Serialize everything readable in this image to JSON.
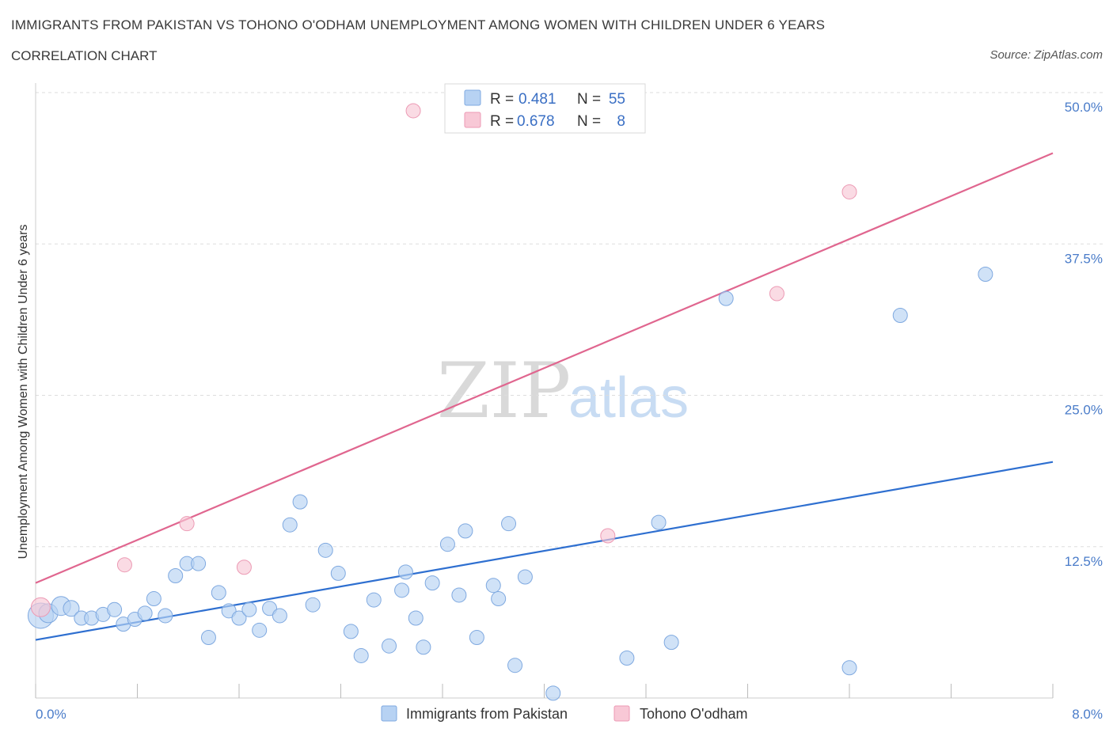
{
  "header": {
    "title": "IMMIGRANTS FROM PAKISTAN VS TOHONO O'ODHAM UNEMPLOYMENT AMONG WOMEN WITH CHILDREN UNDER 6 YEARS",
    "subtitle": "CORRELATION CHART",
    "source": "Source: ZipAtlas.com"
  },
  "watermark": {
    "zip": "ZIP",
    "atlas": "atlas"
  },
  "legend": {
    "rows": [
      {
        "r_label": "R =",
        "r_value": "0.481",
        "n_label": "N =",
        "n_value": "55"
      },
      {
        "r_label": "R =",
        "r_value": "0.678",
        "n_label": "N =",
        "n_value": "8"
      }
    ]
  },
  "colors": {
    "blue_fill": "#b7d2f3",
    "blue_stroke": "#7fa9e0",
    "blue_line": "#2e6fd0",
    "pink_fill": "#f8c8d6",
    "pink_stroke": "#ec9ab4",
    "pink_line": "#e0668f",
    "grid": "#dddddd",
    "tick_text": "#4a7cc9"
  },
  "chart_data": {
    "type": "scatter",
    "title": "IMMIGRANTS FROM PAKISTAN VS TOHONO O'ODHAM UNEMPLOYMENT AMONG WOMEN WITH CHILDREN UNDER 6 YEARS",
    "xlabel": "",
    "ylabel": "Unemployment Among Women with Children Under 6 years",
    "xlim": [
      0,
      8
    ],
    "ylim": [
      0,
      50
    ],
    "x_tick_labels": [
      "0.0%",
      "8.0%"
    ],
    "y_ticks": [
      12.5,
      25.0,
      37.5,
      50.0
    ],
    "y_tick_labels": [
      "12.5%",
      "25.0%",
      "37.5%",
      "50.0%"
    ],
    "grid": true,
    "legend_position": "top-center",
    "series": [
      {
        "name": "Immigrants from Pakistan",
        "color": "#b7d2f3",
        "trend": {
          "x0": 0,
          "y0": 4.8,
          "x1": 8,
          "y1": 19.5
        },
        "points": [
          [
            0.04,
            6.8,
            16
          ],
          [
            0.1,
            7.0,
            12
          ],
          [
            0.2,
            7.6,
            12
          ],
          [
            0.28,
            7.4,
            10
          ],
          [
            0.36,
            6.6,
            9
          ],
          [
            0.44,
            6.6,
            9
          ],
          [
            0.53,
            6.9,
            9
          ],
          [
            0.62,
            7.3,
            9
          ],
          [
            0.69,
            6.1,
            9
          ],
          [
            0.78,
            6.5,
            9
          ],
          [
            0.86,
            7.0,
            9
          ],
          [
            0.93,
            8.2,
            9
          ],
          [
            1.02,
            6.8,
            9
          ],
          [
            1.1,
            10.1,
            9
          ],
          [
            1.19,
            11.1,
            9
          ],
          [
            1.28,
            11.1,
            9
          ],
          [
            1.36,
            5.0,
            9
          ],
          [
            1.44,
            8.7,
            9
          ],
          [
            1.52,
            7.2,
            9
          ],
          [
            1.6,
            6.6,
            9
          ],
          [
            1.68,
            7.3,
            9
          ],
          [
            1.76,
            5.6,
            9
          ],
          [
            1.84,
            7.4,
            9
          ],
          [
            1.92,
            6.8,
            9
          ],
          [
            2.0,
            14.3,
            9
          ],
          [
            2.08,
            16.2,
            9
          ],
          [
            2.18,
            7.7,
            9
          ],
          [
            2.28,
            12.2,
            9
          ],
          [
            2.38,
            10.3,
            9
          ],
          [
            2.48,
            5.5,
            9
          ],
          [
            2.56,
            3.5,
            9
          ],
          [
            2.66,
            8.1,
            9
          ],
          [
            2.78,
            4.3,
            9
          ],
          [
            2.88,
            8.9,
            9
          ],
          [
            2.91,
            10.4,
            9
          ],
          [
            2.99,
            6.6,
            9
          ],
          [
            3.05,
            4.2,
            9
          ],
          [
            3.12,
            9.5,
            9
          ],
          [
            3.24,
            12.7,
            9
          ],
          [
            3.33,
            8.5,
            9
          ],
          [
            3.38,
            13.8,
            9
          ],
          [
            3.47,
            5.0,
            9
          ],
          [
            3.6,
            9.3,
            9
          ],
          [
            3.64,
            8.2,
            9
          ],
          [
            3.72,
            14.4,
            9
          ],
          [
            3.77,
            2.7,
            9
          ],
          [
            3.85,
            10.0,
            9
          ],
          [
            4.07,
            0.4,
            9
          ],
          [
            4.65,
            3.3,
            9
          ],
          [
            4.9,
            14.5,
            9
          ],
          [
            5.0,
            4.6,
            9
          ],
          [
            5.43,
            33.0,
            9
          ],
          [
            6.4,
            2.5,
            9
          ],
          [
            6.8,
            31.6,
            9
          ],
          [
            7.47,
            35.0,
            9
          ]
        ]
      },
      {
        "name": "Tohono O'odham",
        "color": "#f8c8d6",
        "trend": {
          "x0": 0,
          "y0": 9.5,
          "x1": 8,
          "y1": 45.0
        },
        "points": [
          [
            0.04,
            7.5,
            12
          ],
          [
            0.7,
            11.0,
            9
          ],
          [
            1.19,
            14.4,
            9
          ],
          [
            1.64,
            10.8,
            9
          ],
          [
            2.97,
            48.5,
            9
          ],
          [
            4.5,
            13.4,
            9
          ],
          [
            5.83,
            33.4,
            9
          ],
          [
            6.4,
            41.8,
            9
          ]
        ]
      }
    ]
  },
  "bottom_legend": {
    "items": [
      {
        "label": "Immigrants from Pakistan"
      },
      {
        "label": "Tohono O'odham"
      }
    ]
  }
}
